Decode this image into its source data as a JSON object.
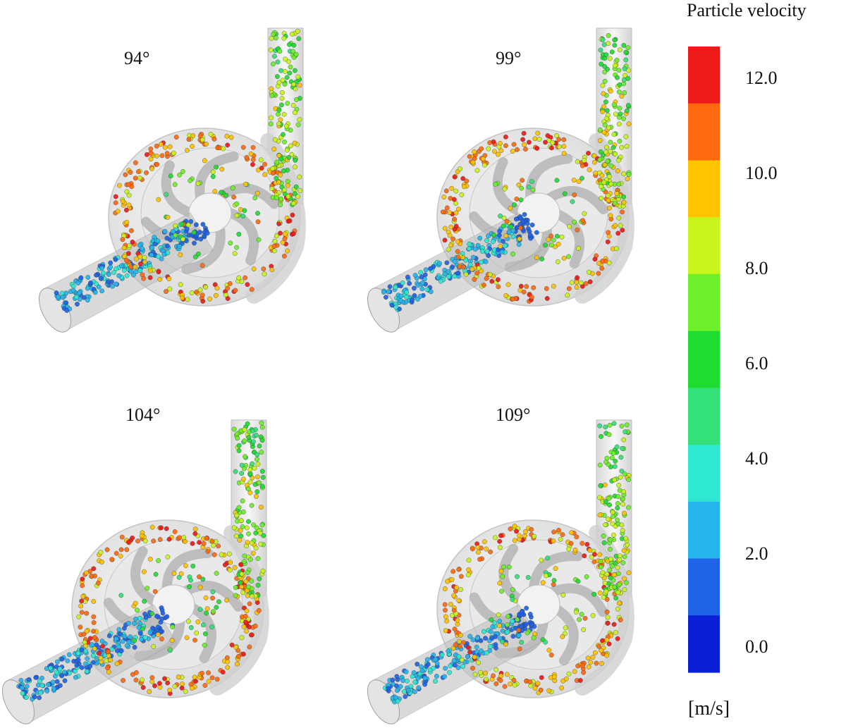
{
  "panels": [
    {
      "angle": "94°"
    },
    {
      "angle": "99°"
    },
    {
      "angle": "104°"
    },
    {
      "angle": "109°"
    }
  ],
  "legend": {
    "title": "Particle velocity",
    "unit": "[m/s]",
    "ticks": [
      "12.0",
      "10.0",
      "8.0",
      "6.0",
      "4.0",
      "2.0",
      "0.0"
    ],
    "colors": [
      "#0a1fd6",
      "#1f63e6",
      "#26b6ee",
      "#2ee8d2",
      "#33e07a",
      "#1fdc33",
      "#6cf02a",
      "#c8f51c",
      "#ffc300",
      "#ff6a10",
      "#ee1a1a"
    ]
  }
}
